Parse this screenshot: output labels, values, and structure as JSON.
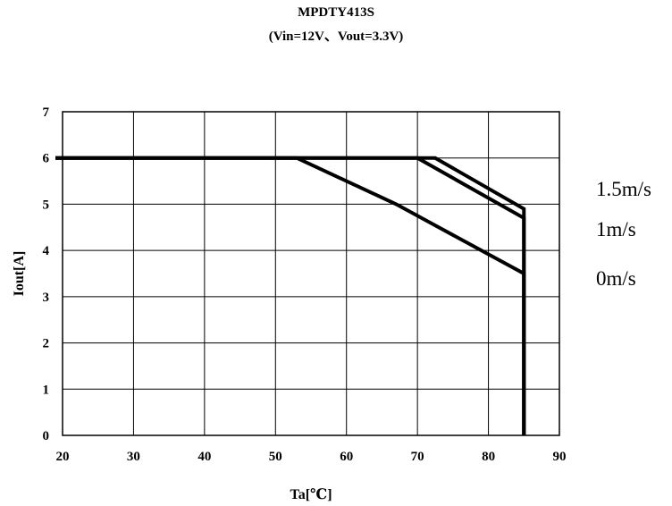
{
  "chart_data": {
    "type": "line",
    "title": "MPDTY413S",
    "subtitle": "(Vin=12V、Vout=3.3V)",
    "xlabel": "Ta[℃]",
    "ylabel": "Iout[A]",
    "xlim": [
      20,
      90
    ],
    "ylim": [
      0,
      7
    ],
    "xticks": [
      20,
      30,
      40,
      50,
      60,
      70,
      80,
      90
    ],
    "yticks": [
      0,
      1,
      2,
      3,
      4,
      5,
      6,
      7
    ],
    "grid": true,
    "series": [
      {
        "name": "1.5m/s",
        "x": [
          20,
          72.5,
          85,
          85
        ],
        "y": [
          6,
          6,
          4.9,
          0
        ]
      },
      {
        "name": "1m/s",
        "x": [
          20,
          70,
          85,
          85
        ],
        "y": [
          6,
          6,
          4.7,
          0
        ]
      },
      {
        "name": "0m/s",
        "x": [
          20,
          53,
          67,
          85,
          85
        ],
        "y": [
          6,
          6,
          5,
          3.5,
          0
        ]
      }
    ],
    "legend_placement": "right"
  }
}
